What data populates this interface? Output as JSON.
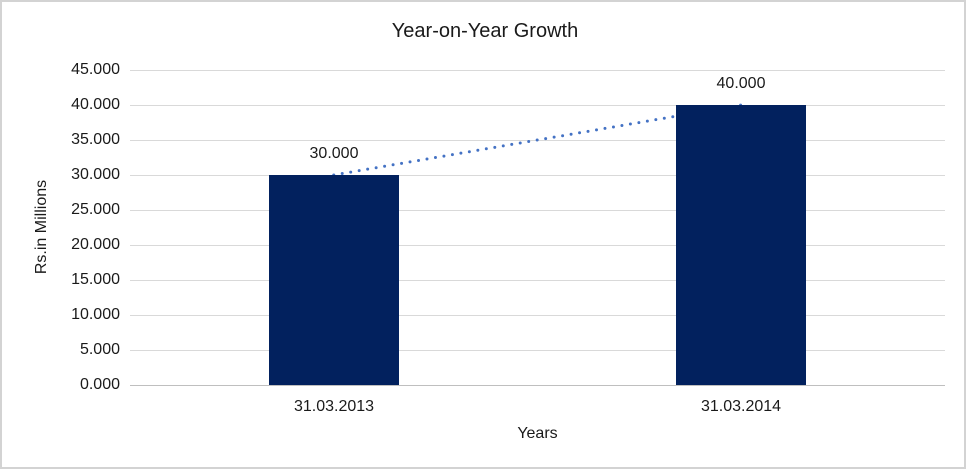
{
  "chart_data": {
    "type": "bar",
    "title": "Year-on-Year Growth",
    "xlabel": "Years",
    "ylabel": "Rs.in Millions",
    "categories": [
      "31.03.2013",
      "31.03.2014"
    ],
    "values": [
      30000,
      40000
    ],
    "value_labels": [
      "30.000",
      "40.000"
    ],
    "ylim": [
      0,
      45000
    ],
    "ytick_step": 5000,
    "ytick_labels": [
      "0.000",
      "5.000",
      "10.000",
      "15.000",
      "20.000",
      "25.000",
      "30.000",
      "35.000",
      "40.000",
      "45.000"
    ],
    "grid": true,
    "legend": "none",
    "data_label_position": "outside-end",
    "trendline": {
      "style": "dotted",
      "from_category": "31.03.2013",
      "to_category": "31.03.2014",
      "from_value": 30000,
      "to_value": 40000
    },
    "colors": {
      "bar": "#02215E",
      "trendline": "#4472C4",
      "gridline": "#D9D9D9",
      "axis_line": "#BFBFBF",
      "text": "#1A1A1A",
      "frame_border": "#D3D3D3",
      "background": "#FFFFFF"
    }
  }
}
